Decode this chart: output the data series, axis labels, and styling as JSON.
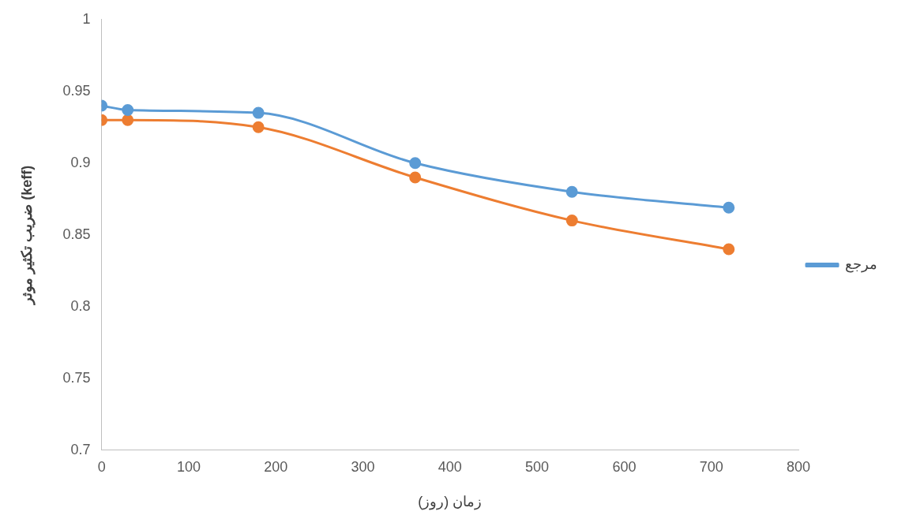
{
  "chart_data": {
    "type": "line",
    "xlabel": "زمان (روز)",
    "ylabel": "ضریب تکثیر موثر (keff)",
    "x": [
      0,
      30,
      180,
      360,
      540,
      720
    ],
    "series": [
      {
        "name": "مرجع",
        "color": "#5b9bd5",
        "values": [
          0.94,
          0.937,
          0.935,
          0.9,
          0.88,
          0.869
        ]
      },
      {
        "color": "#ed7d31",
        "values": [
          0.93,
          0.93,
          0.925,
          0.89,
          0.86,
          0.84
        ]
      }
    ],
    "xlim": [
      0,
      800
    ],
    "xticks": [
      0,
      100,
      200,
      300,
      400,
      500,
      600,
      700,
      800
    ],
    "ylim": [
      0.7,
      1
    ],
    "yticks": [
      0.7,
      0.75,
      0.8,
      0.85,
      0.9,
      0.95,
      1
    ],
    "grid": false,
    "legend": "right",
    "marker": "circle",
    "line_style": "solid"
  }
}
